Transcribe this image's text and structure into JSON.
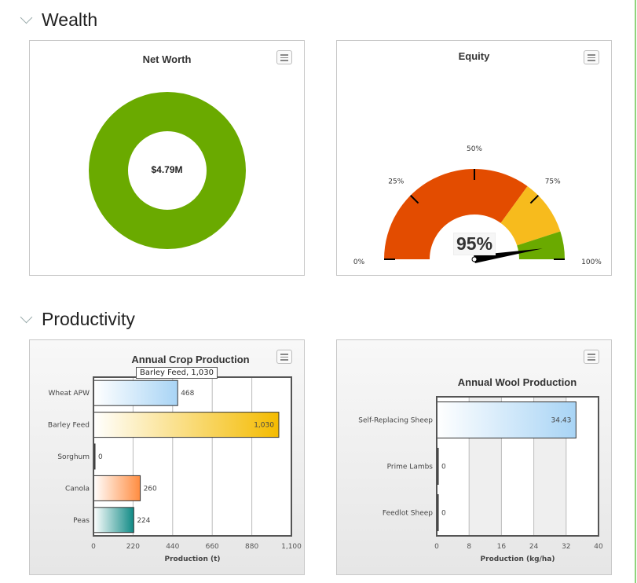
{
  "sections": {
    "wealth": "Wealth",
    "productivity": "Productivity"
  },
  "net_worth": {
    "title": "Net Worth",
    "center_label": "$4.79M",
    "color": "#6aaa00"
  },
  "equity": {
    "title": "Equity",
    "value_label": "95%",
    "value": 95,
    "bands": [
      {
        "from": 0,
        "to": 70,
        "color": "#e34c00"
      },
      {
        "from": 70,
        "to": 90,
        "color": "#f7bb1d"
      },
      {
        "from": 90,
        "to": 100,
        "color": "#6aaa00"
      }
    ],
    "ticks": [
      "0%",
      "25%",
      "50%",
      "75%",
      "100%"
    ]
  },
  "chart_data": [
    {
      "type": "bar",
      "title": "Annual Crop Production",
      "xlabel": "Production (t)",
      "ylabel": "",
      "xlim": [
        0,
        1100
      ],
      "ticks": [
        "0",
        "220",
        "440",
        "660",
        "880",
        "1,100"
      ],
      "categories": [
        "Wheat APW",
        "Barley Feed",
        "Sorghum",
        "Canola",
        "Peas"
      ],
      "values": [
        468,
        1030,
        0,
        260,
        224
      ],
      "labels": [
        "468",
        "1,030",
        "0",
        "260",
        "224"
      ],
      "colors": [
        "#a8d4f5",
        "#f4bb00",
        "#444444",
        "#ff8c40",
        "#108a85"
      ],
      "tooltip": "Barley Feed, 1,030"
    },
    {
      "type": "bar",
      "title": "Annual Wool Production",
      "xlabel": "Production (kg/ha)",
      "ylabel": "",
      "xlim": [
        0,
        40
      ],
      "ticks": [
        "0",
        "8",
        "16",
        "24",
        "32",
        "40"
      ],
      "categories": [
        "Self-Replacing Sheep",
        "Prime Lambs",
        "Feedlot Sheep"
      ],
      "values": [
        34.43,
        0,
        0
      ],
      "labels": [
        "34.43",
        "0",
        "0"
      ],
      "colors": [
        "#a8d4f5",
        "#444444",
        "#444444"
      ]
    }
  ]
}
